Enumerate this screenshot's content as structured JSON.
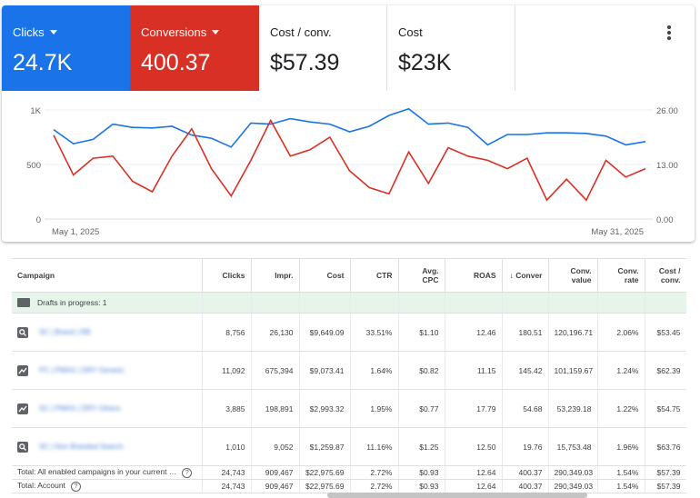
{
  "tiles": [
    {
      "label": "Clicks",
      "value": "24.7K",
      "color": "#1a73e8"
    },
    {
      "label": "Conversions",
      "value": "400.37",
      "color": "#d93025"
    },
    {
      "label": "Cost / conv.",
      "value": "$57.39"
    },
    {
      "label": "Cost",
      "value": "$23K"
    }
  ],
  "chart_data": {
    "type": "line",
    "x_start": "May 1, 2025",
    "x_end": "May 31, 2025",
    "y_left_ticks": [
      "1K",
      "500",
      "0"
    ],
    "y_left_range": [
      0,
      1000
    ],
    "y_right_ticks": [
      "26.00",
      "13.00",
      "0.00"
    ],
    "y_right_range": [
      0,
      26
    ],
    "series": [
      {
        "name": "Clicks",
        "axis": "left",
        "color": "#1a73e8",
        "values": [
          820,
          690,
          730,
          870,
          840,
          835,
          850,
          770,
          740,
          660,
          880,
          870,
          920,
          890,
          870,
          800,
          850,
          950,
          1010,
          870,
          880,
          840,
          680,
          775,
          775,
          790,
          790,
          785,
          760,
          680,
          710
        ]
      },
      {
        "name": "Conversions",
        "axis": "right",
        "color": "#d93025",
        "values": [
          20.0,
          10.5,
          14.5,
          15.0,
          9.0,
          6.5,
          15.0,
          21.5,
          12.0,
          5.5,
          14.0,
          23.5,
          15.0,
          16.5,
          19.5,
          11.5,
          7.5,
          6.0,
          16.0,
          8.5,
          17.0,
          15.0,
          14.0,
          12.0,
          14.5,
          4.5,
          9.5,
          4.5,
          14.0,
          10.0,
          12.0
        ]
      }
    ]
  },
  "table": {
    "columns": [
      "Campaign",
      "Clicks",
      "Impr.",
      "Cost",
      "CTR",
      "Avg. CPC",
      "ROAS",
      "Conver",
      "Conv. value",
      "Conv. rate",
      "Cost / conv."
    ],
    "drafts_label": "Drafts in progress: 1",
    "rows": [
      {
        "icon": "search-icon",
        "name": "SC | Brand | RB",
        "values": [
          "8,756",
          "26,130",
          "$9,649.09",
          "33.51%",
          "$1.10",
          "12.46",
          "180.51",
          "120,196.71",
          "2.06%",
          "$53.45"
        ]
      },
      {
        "icon": "trend-icon",
        "name": "PC | PMAX | DRY Generic",
        "values": [
          "11,092",
          "675,394",
          "$9,073.41",
          "1.64%",
          "$0.82",
          "11.15",
          "145.42",
          "101,159.67",
          "1.24%",
          "$62.39"
        ]
      },
      {
        "icon": "trend-icon",
        "name": "SC | PMAX | DRY Others",
        "values": [
          "3,885",
          "198,891",
          "$2,993.32",
          "1.95%",
          "$0.77",
          "17.79",
          "54.68",
          "53,239.18",
          "1.22%",
          "$54.75"
        ]
      },
      {
        "icon": "search-icon",
        "name": "SC | Non Branded Search",
        "values": [
          "1,010",
          "9,052",
          "$1,259.87",
          "11.16%",
          "$1.25",
          "12.50",
          "19.76",
          "15,753.48",
          "1.96%",
          "$63.76"
        ]
      }
    ],
    "totals": [
      {
        "label": "Total: All enabled campaigns in your current …",
        "values": [
          "24,743",
          "909,467",
          "$22,975.69",
          "2.72%",
          "$0.93",
          "12.64",
          "400.37",
          "290,349.03",
          "1.54%",
          "$57.39"
        ]
      },
      {
        "label": "Total: Account",
        "values": [
          "24,743",
          "909,467",
          "$22,975.69",
          "2.72%",
          "$0.93",
          "12.64",
          "400.37",
          "290,349.03",
          "1.54%",
          "$57.39"
        ]
      }
    ]
  }
}
